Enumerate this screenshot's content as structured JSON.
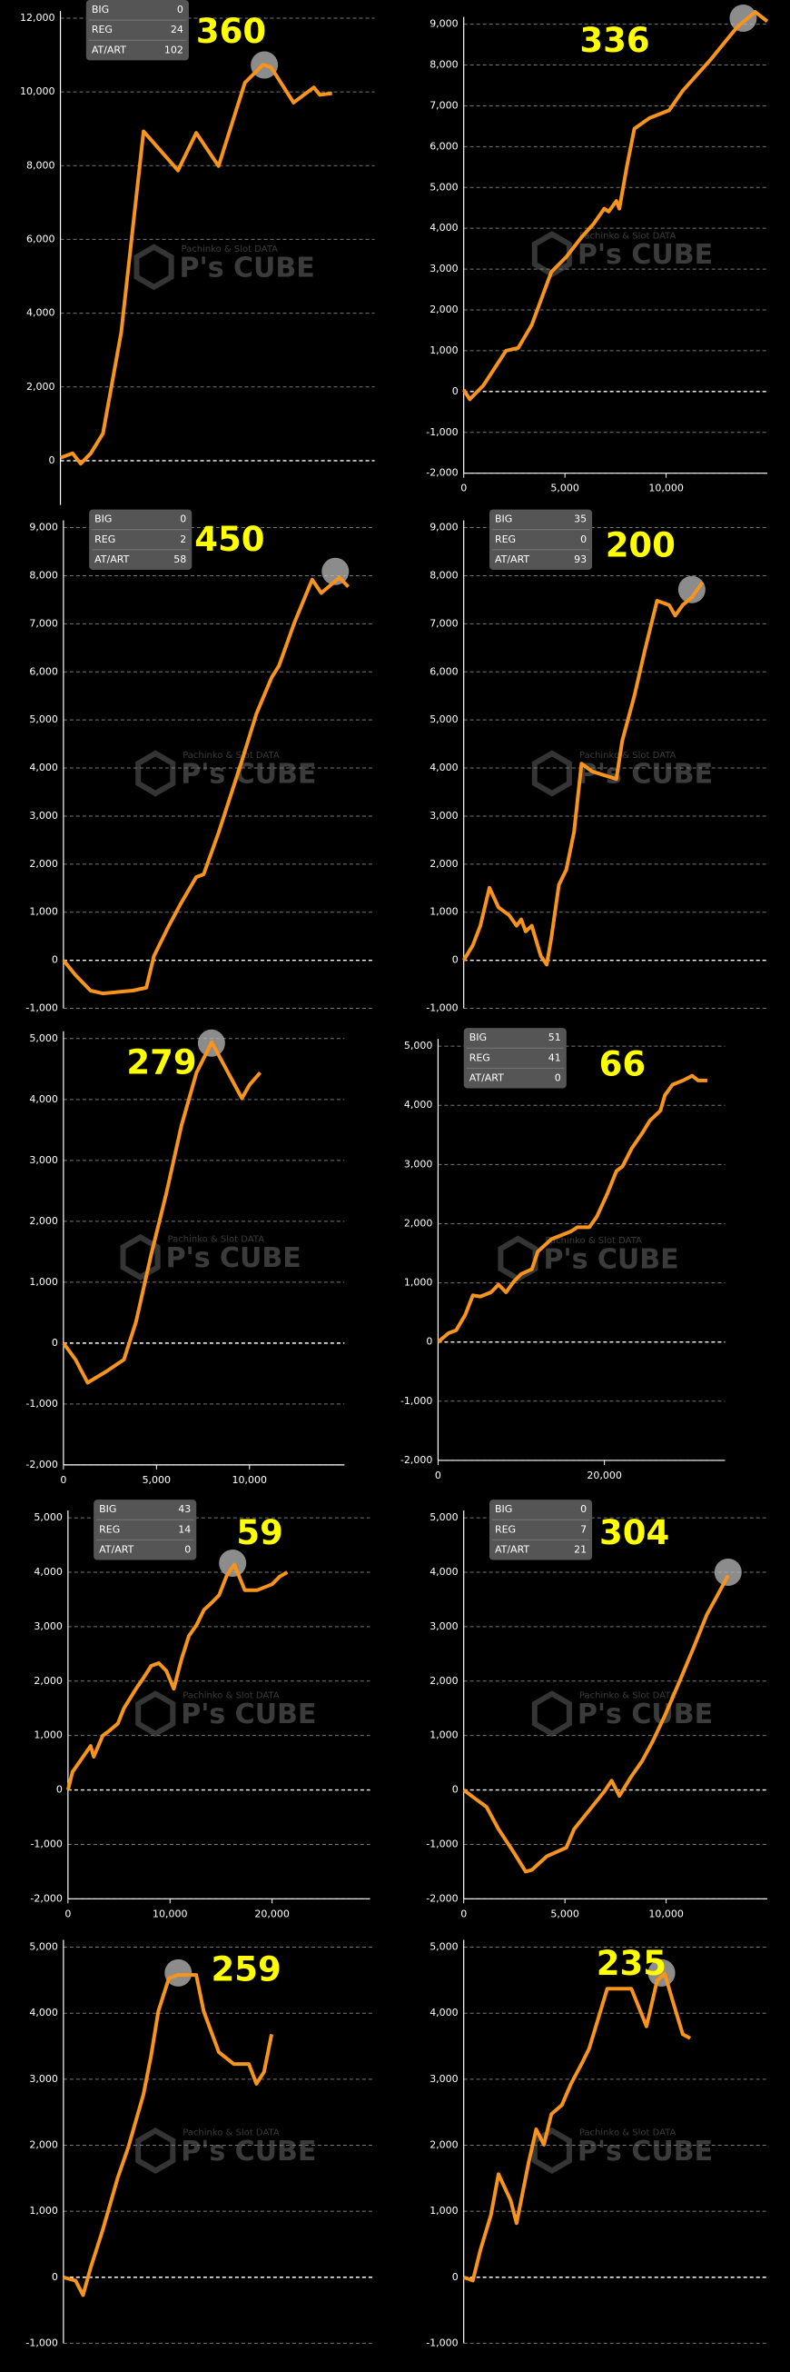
{
  "watermark": {
    "top": "Pachinko & Slot DATA",
    "logo": "P's CUBE"
  },
  "chart_data": [
    {
      "type": "line",
      "color": "#f7941d",
      "annotation": 360,
      "stats": [
        {
          "label": "BIG",
          "value": 0
        },
        {
          "label": "REG",
          "value": 24
        },
        {
          "label": "AT/ART",
          "value": 102
        }
      ],
      "x": [
        0,
        600,
        1000,
        1500,
        2100,
        3000,
        4100,
        5800,
        6700,
        7800,
        9100,
        10000,
        10400,
        11500,
        12500,
        12800,
        13400
      ],
      "values": [
        80,
        200,
        -80,
        200,
        740,
        3480,
        8930,
        7870,
        8890,
        7990,
        10250,
        10740,
        10660,
        9710,
        10120,
        9920,
        9960
      ],
      "xlim": [
        0,
        15500
      ],
      "ylim": [
        -1200,
        12000
      ],
      "yticks": [
        {
          "value": 12000,
          "label": "12,000"
        },
        {
          "value": 10000,
          "label": "10,000"
        },
        {
          "value": 8000,
          "label": "8,000"
        },
        {
          "value": 6000,
          "label": "6,000"
        },
        {
          "value": 4000,
          "label": "4,000"
        },
        {
          "value": 2000,
          "label": "2,000"
        },
        0
      ],
      "xticks": []
    },
    {
      "type": "line",
      "color": "#f7941d",
      "annotation": 336,
      "x": [
        0,
        300,
        970,
        2090,
        2690,
        3360,
        4330,
        5070,
        5820,
        6420,
        6940,
        7160,
        7540,
        7690,
        8060,
        8430,
        9180,
        10150,
        10820,
        12160,
        13510,
        14400,
        15000
      ],
      "values": [
        40,
        -190,
        150,
        1000,
        1070,
        1630,
        2930,
        3300,
        3780,
        4110,
        4480,
        4410,
        4670,
        4480,
        5520,
        6440,
        6700,
        6890,
        7370,
        8110,
        8930,
        9300,
        9070
      ],
      "xlim": [
        0,
        15000
      ],
      "ylim": [
        -2000,
        9000
      ],
      "yticks": [
        {
          "value": 9000,
          "label": "9,000"
        },
        {
          "value": 8000,
          "label": "8,000"
        },
        {
          "value": 7000,
          "label": "7,000"
        },
        {
          "value": 6000,
          "label": "6,000"
        },
        {
          "value": 5000,
          "label": "5,000"
        },
        {
          "value": 4000,
          "label": "4,000"
        },
        {
          "value": 3000,
          "label": "3,000"
        },
        {
          "value": 2000,
          "label": "2,000"
        },
        {
          "value": 1000,
          "label": "1,000"
        },
        0,
        {
          "value": -1000,
          "label": "-1,000"
        },
        {
          "value": -2000,
          "label": "-2,000"
        }
      ],
      "xticks": [
        0,
        {
          "value": 5000,
          "label": "5,000"
        },
        {
          "value": 10000,
          "label": "10,000"
        }
      ]
    },
    {
      "type": "line",
      "color": "#f7941d",
      "annotation": 450,
      "stats": [
        {
          "label": "BIG",
          "value": 0
        },
        {
          "label": "REG",
          "value": 2
        },
        {
          "label": "AT/ART",
          "value": 58
        }
      ],
      "x": [
        0,
        600,
        1340,
        1940,
        3430,
        4100,
        4480,
        5220,
        5820,
        6570,
        6940,
        7690,
        8810,
        9550,
        10300,
        10670,
        11420,
        12310,
        12760,
        13660,
        14100
      ],
      "values": [
        0,
        -310,
        -630,
        -690,
        -630,
        -570,
        90,
        720,
        1190,
        1730,
        1790,
        2670,
        4120,
        5130,
        5880,
        6130,
        7010,
        7920,
        7640,
        7960,
        7770
      ],
      "xlim": [
        0,
        15400
      ],
      "ylim": [
        -1000,
        9000
      ],
      "yticks": [
        {
          "value": 9000,
          "label": "9,000"
        },
        {
          "value": 8000,
          "label": "8,000"
        },
        {
          "value": 7000,
          "label": "7,000"
        },
        {
          "value": 6000,
          "label": "6,000"
        },
        {
          "value": 5000,
          "label": "5,000"
        },
        {
          "value": 4000,
          "label": "4,000"
        },
        {
          "value": 3000,
          "label": "3,000"
        },
        {
          "value": 2000,
          "label": "2,000"
        },
        {
          "value": 1000,
          "label": "1,000"
        },
        0,
        {
          "value": -1000,
          "label": "-1,000"
        }
      ],
      "xticks": []
    },
    {
      "type": "line",
      "color": "#f7941d",
      "annotation": 200,
      "stats": [
        {
          "label": "BIG",
          "value": 35
        },
        {
          "label": "REG",
          "value": 0
        },
        {
          "label": "AT/ART",
          "value": 93
        }
      ],
      "x": [
        0,
        450,
        820,
        1270,
        1720,
        2240,
        2610,
        2840,
        3060,
        3360,
        3580,
        3810,
        4100,
        4330,
        4700,
        5070,
        5450,
        5820,
        6340,
        7540,
        7830,
        8430,
        8950,
        9550,
        10150,
        10450,
        10820,
        11270,
        11790
      ],
      "values": [
        0,
        310,
        720,
        1510,
        1100,
        940,
        720,
        850,
        600,
        720,
        410,
        90,
        -90,
        470,
        1570,
        1890,
        2670,
        4090,
        3930,
        3770,
        4560,
        5500,
        6450,
        7480,
        7390,
        7170,
        7390,
        7550,
        7860
      ],
      "xlim": [
        0,
        15000
      ],
      "ylim": [
        -1000,
        9000
      ],
      "yticks": [
        {
          "value": 9000,
          "label": "9,000"
        },
        {
          "value": 8000,
          "label": "8,000"
        },
        {
          "value": 7000,
          "label": "7,000"
        },
        {
          "value": 6000,
          "label": "6,000"
        },
        {
          "value": 5000,
          "label": "5,000"
        },
        {
          "value": 4000,
          "label": "4,000"
        },
        {
          "value": 3000,
          "label": "3,000"
        },
        {
          "value": 2000,
          "label": "2,000"
        },
        {
          "value": 1000,
          "label": "1,000"
        },
        0,
        {
          "value": -1000,
          "label": "-1,000"
        }
      ],
      "xticks": []
    },
    {
      "type": "line",
      "color": "#f7941d",
      "annotation": 279,
      "x": [
        0,
        650,
        1300,
        2280,
        3250,
        3900,
        4720,
        5530,
        6340,
        7150,
        7970,
        8620,
        9590,
        10000,
        10570
      ],
      "values": [
        0,
        -270,
        -650,
        -470,
        -270,
        350,
        1460,
        2460,
        3570,
        4440,
        4940,
        4570,
        4020,
        4240,
        4440
      ],
      "xlim": [
        0,
        15100
      ],
      "ylim": [
        -2000,
        5000
      ],
      "yticks": [
        {
          "value": 5000,
          "label": "5,000"
        },
        {
          "value": 4000,
          "label": "4,000"
        },
        {
          "value": 3000,
          "label": "3,000"
        },
        {
          "value": 2000,
          "label": "2,000"
        },
        {
          "value": 1000,
          "label": "1,000"
        },
        0,
        {
          "value": -1000,
          "label": "-1,000"
        },
        {
          "value": -2000,
          "label": "-2,000"
        }
      ],
      "xticks": [
        0,
        {
          "value": 5000,
          "label": "5,000"
        },
        {
          "value": 10000,
          "label": "10,000"
        }
      ]
    },
    {
      "type": "line",
      "color": "#f7941d",
      "annotation": 66,
      "stats": [
        {
          "label": "BIG",
          "value": 51
        },
        {
          "label": "REG",
          "value": 41
        },
        {
          "label": "AT/ART",
          "value": 0
        }
      ],
      "x": [
        0,
        1270,
        2180,
        3270,
        4180,
        5090,
        6360,
        7270,
        8180,
        9090,
        10000,
        11270,
        12000,
        13640,
        14550,
        16000,
        16730,
        18180,
        19090,
        20360,
        21450,
        22180,
        23270,
        24550,
        25450,
        26730,
        27270,
        28180,
        29450,
        30550,
        31270,
        32360
      ],
      "values": [
        0,
        150,
        200,
        460,
        790,
        770,
        840,
        970,
        840,
        1020,
        1150,
        1230,
        1530,
        1740,
        1790,
        1870,
        1940,
        1940,
        2120,
        2510,
        2890,
        2970,
        3270,
        3530,
        3740,
        3910,
        4170,
        4350,
        4420,
        4500,
        4420,
        4420
      ],
      "xlim": [
        0,
        34500
      ],
      "ylim": [
        -2000,
        5000
      ],
      "yticks": [
        {
          "value": 5000,
          "label": "5,000"
        },
        {
          "value": 4000,
          "label": "4,000"
        },
        {
          "value": 3000,
          "label": "3,000"
        },
        {
          "value": 2000,
          "label": "2,000"
        },
        {
          "value": 1000,
          "label": "1,000"
        },
        0,
        {
          "value": -1000,
          "label": "-1,000"
        },
        {
          "value": -2000,
          "label": "-2,000"
        }
      ],
      "xticks": [
        0,
        {
          "value": 20000,
          "label": "20,000"
        }
      ]
    },
    {
      "type": "line",
      "color": "#f7941d",
      "annotation": 59,
      "stats": [
        {
          "label": "BIG",
          "value": 43
        },
        {
          "label": "REG",
          "value": 14
        },
        {
          "label": "AT/ART",
          "value": 0
        }
      ],
      "x": [
        0,
        440,
        1480,
        2220,
        2520,
        3410,
        4000,
        4890,
        5480,
        6670,
        7410,
        8150,
        8890,
        9630,
        10370,
        11110,
        11850,
        12590,
        13330,
        14070,
        14810,
        15560,
        16300,
        17330,
        18520,
        20000,
        20740,
        21480
      ],
      "values": [
        0,
        330,
        610,
        810,
        610,
        1000,
        1080,
        1220,
        1500,
        1860,
        2060,
        2280,
        2330,
        2190,
        1860,
        2390,
        2830,
        3030,
        3310,
        3440,
        3580,
        3940,
        4140,
        3670,
        3670,
        3780,
        3920,
        4000
      ],
      "xlim": [
        0,
        29600
      ],
      "ylim": [
        -2000,
        5000
      ],
      "yticks": [
        {
          "value": 5000,
          "label": "5,000"
        },
        {
          "value": 4000,
          "label": "4,000"
        },
        {
          "value": 3000,
          "label": "3,000"
        },
        {
          "value": 2000,
          "label": "2,000"
        },
        {
          "value": 1000,
          "label": "1,000"
        },
        0,
        {
          "value": -1000,
          "label": "-1,000"
        },
        {
          "value": -2000,
          "label": "-2,000"
        }
      ],
      "xticks": [
        0,
        {
          "value": 10000,
          "label": "10,000"
        },
        {
          "value": 20000,
          "label": "20,000"
        }
      ]
    },
    {
      "type": "line",
      "color": "#f7941d",
      "annotation": 304,
      "stats": [
        {
          "label": "BIG",
          "value": 0
        },
        {
          "label": "REG",
          "value": 7
        },
        {
          "label": "AT/ART",
          "value": 21
        }
      ],
      "x": [
        0,
        600,
        1120,
        1720,
        2460,
        3060,
        3360,
        4100,
        5070,
        5450,
        6340,
        6940,
        7310,
        7690,
        8280,
        8810,
        9330,
        9930,
        10670,
        11420,
        12010,
        12540,
        13060
      ],
      "values": [
        0,
        -170,
        -310,
        -720,
        -1140,
        -1500,
        -1470,
        -1220,
        -1060,
        -720,
        -310,
        -30,
        170,
        -110,
        250,
        530,
        890,
        1360,
        2000,
        2670,
        3220,
        3580,
        3940
      ],
      "xlim": [
        0,
        15000
      ],
      "ylim": [
        -2000,
        5000
      ],
      "yticks": [
        {
          "value": 5000,
          "label": "5,000"
        },
        {
          "value": 4000,
          "label": "4,000"
        },
        {
          "value": 3000,
          "label": "3,000"
        },
        {
          "value": 2000,
          "label": "2,000"
        },
        {
          "value": 1000,
          "label": "1,000"
        },
        0,
        {
          "value": -1000,
          "label": "-1,000"
        },
        {
          "value": -2000,
          "label": "-2,000"
        }
      ],
      "xticks": [
        0,
        {
          "value": 5000,
          "label": "5,000"
        },
        {
          "value": 10000,
          "label": "10,000"
        }
      ]
    },
    {
      "type": "line",
      "color": "#f7941d",
      "annotation": 259,
      "x": [
        0,
        600,
        970,
        1340,
        1940,
        2690,
        3210,
        3960,
        4330,
        4700,
        5220,
        5670,
        6570,
        6940,
        7690,
        8430,
        9180,
        9550,
        9930,
        10300
      ],
      "values": [
        0,
        -50,
        -270,
        140,
        710,
        1510,
        1970,
        2770,
        3340,
        4030,
        4530,
        4580,
        4580,
        4030,
        3410,
        3230,
        3230,
        2930,
        3110,
        3680
      ],
      "xlim": [
        0,
        15400
      ],
      "ylim": [
        -1000,
        5000
      ],
      "yticks": [
        {
          "value": 5000,
          "label": "5,000"
        },
        {
          "value": 4000,
          "label": "4,000"
        },
        {
          "value": 3000,
          "label": "3,000"
        },
        {
          "value": 2000,
          "label": "2,000"
        },
        {
          "value": 1000,
          "label": "1,000"
        },
        0,
        {
          "value": -1000,
          "label": "-1,000"
        }
      ],
      "xticks": []
    },
    {
      "type": "line",
      "color": "#f7941d",
      "annotation": 235,
      "x": [
        0,
        450,
        820,
        1340,
        1720,
        2310,
        2610,
        3210,
        3580,
        3960,
        4330,
        4850,
        5300,
        5820,
        6190,
        6570,
        7090,
        7690,
        8280,
        9030,
        9550,
        9930,
        10300,
        10820,
        11190
      ],
      "values": [
        0,
        -50,
        410,
        940,
        1560,
        1170,
        820,
        1740,
        2240,
        2010,
        2470,
        2610,
        2930,
        3230,
        3460,
        3840,
        4370,
        4370,
        4370,
        3800,
        4490,
        4600,
        4210,
        3680,
        3620
      ],
      "xlim": [
        0,
        15000
      ],
      "ylim": [
        -1000,
        5000
      ],
      "yticks": [
        {
          "value": 5000,
          "label": "5,000"
        },
        {
          "value": 4000,
          "label": "4,000"
        },
        {
          "value": 3000,
          "label": "3,000"
        },
        {
          "value": 2000,
          "label": "2,000"
        },
        {
          "value": 1000,
          "label": "1,000"
        },
        0,
        {
          "value": -1000,
          "label": "-1,000"
        }
      ],
      "xticks": []
    }
  ]
}
